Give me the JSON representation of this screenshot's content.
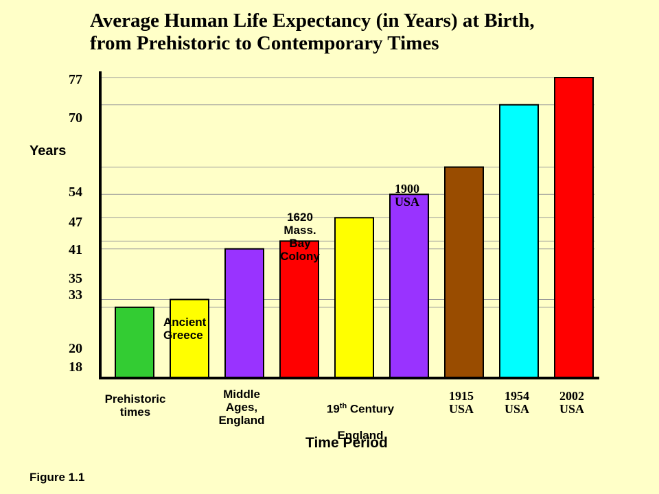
{
  "chart_data": {
    "type": "bar",
    "title_line1": "Average Human Life Expectancy (in Years) at Birth,",
    "title_line2": "from Prehistoric to Contemporary Times",
    "ylabel": "Years",
    "xlabel": "Time Period",
    "ylim": [
      0,
      78
    ],
    "y_ticks": [
      "77",
      "70",
      "54",
      "47",
      "41",
      "35",
      "33",
      "20",
      "18"
    ],
    "grid": true,
    "categories": [
      {
        "label": "Prehistoric times",
        "value": 18,
        "color": "#33CC33"
      },
      {
        "label": "Ancient Greece",
        "value": 20,
        "color": "#FFFF00"
      },
      {
        "label": "Middle Ages, England",
        "value": 33,
        "color": "#9933FF"
      },
      {
        "label": "1620 Mass. Bay Colony",
        "value": 35,
        "color": "#FF0000"
      },
      {
        "label": "19th Century England",
        "value": 41,
        "color": "#FFFF00"
      },
      {
        "label": "1900 USA",
        "value": 47,
        "color": "#9933FF"
      },
      {
        "label": "1915 USA",
        "value": 54,
        "color": "#994C00"
      },
      {
        "label": "1954 USA",
        "value": 70,
        "color": "#00FFFF"
      },
      {
        "label": "2002 USA",
        "value": 77,
        "color": "#FF0000"
      }
    ]
  },
  "labels": {
    "prehistoric": "Prehistoric\ntimes",
    "ancient": "Ancient\nGreece",
    "middle": "Middle\nAges,\nEngland",
    "colony": "1620\nMass.\nBay\nColony",
    "c19_main": "19",
    "c19_sup": "th",
    "c19_rest": " Century",
    "c19_line2": "England",
    "usa1900": "1900\nUSA",
    "usa1915": "1915\nUSA",
    "usa1954": "1954\nUSA",
    "usa2002": "2002\nUSA"
  },
  "figure_label": "Figure 1.1"
}
